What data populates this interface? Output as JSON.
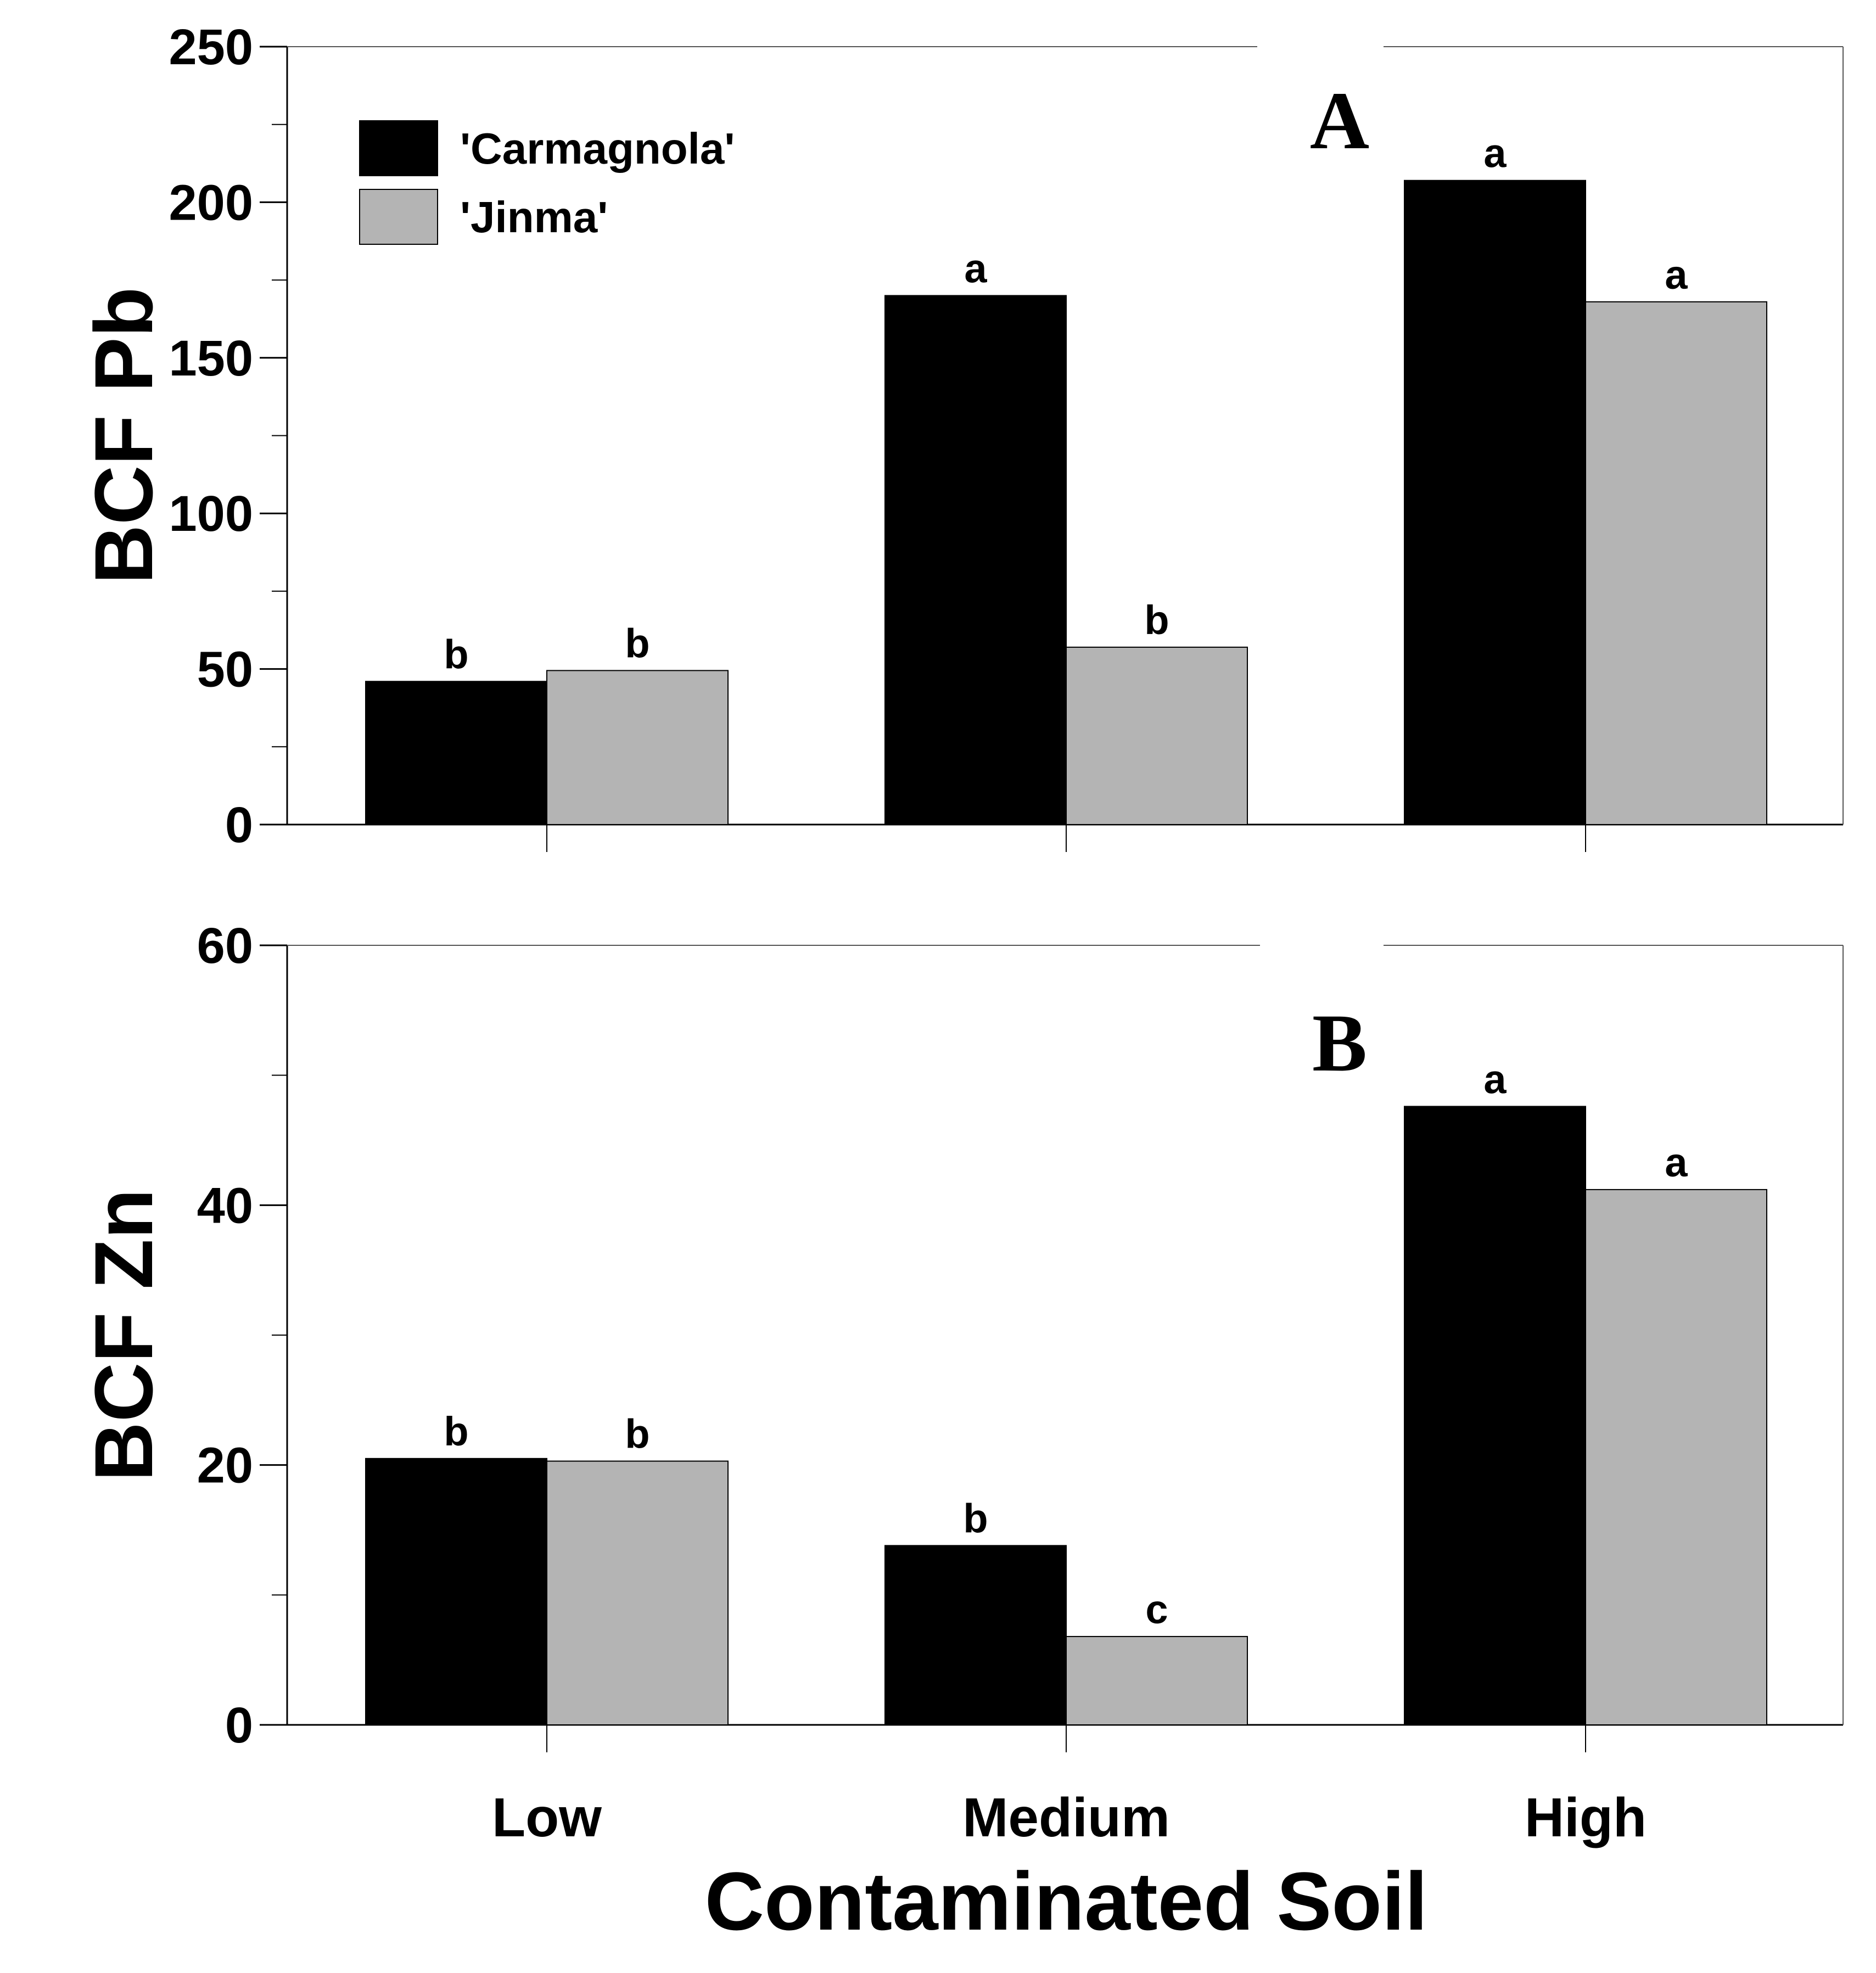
{
  "chart_data": [
    {
      "type": "bar",
      "panel": "A",
      "categories": [
        "Low",
        "Medium",
        "High"
      ],
      "series": [
        {
          "name": "'Carmagnola'",
          "color": "#000000",
          "values": [
            46,
            170,
            207
          ],
          "labels": [
            "b",
            "a",
            "a"
          ]
        },
        {
          "name": "'Jinma'",
          "color": "#b4b4b4",
          "values": [
            49.5,
            57,
            168
          ],
          "labels": [
            "b",
            "b",
            "a"
          ]
        }
      ],
      "ylabel": "BCF Pb",
      "ylim": [
        0,
        250
      ],
      "yticks": [
        0,
        50,
        100,
        150,
        200,
        250
      ],
      "legend": "top-left"
    },
    {
      "type": "bar",
      "panel": "B",
      "categories": [
        "Low",
        "Medium",
        "High"
      ],
      "series": [
        {
          "name": "'Carmagnola'",
          "color": "#000000",
          "values": [
            20.5,
            13.8,
            47.6
          ],
          "labels": [
            "b",
            "b",
            "a"
          ]
        },
        {
          "name": "'Jinma'",
          "color": "#b4b4b4",
          "values": [
            20.3,
            6.8,
            41.2
          ],
          "labels": [
            "b",
            "c",
            "a"
          ]
        }
      ],
      "ylabel": "BCF Zn",
      "ylim": [
        0,
        60
      ],
      "yticks": [
        0,
        20,
        40,
        60
      ]
    }
  ],
  "xlabel": "Contaminated Soil",
  "category_labels": [
    "Low",
    "Medium",
    "High"
  ]
}
